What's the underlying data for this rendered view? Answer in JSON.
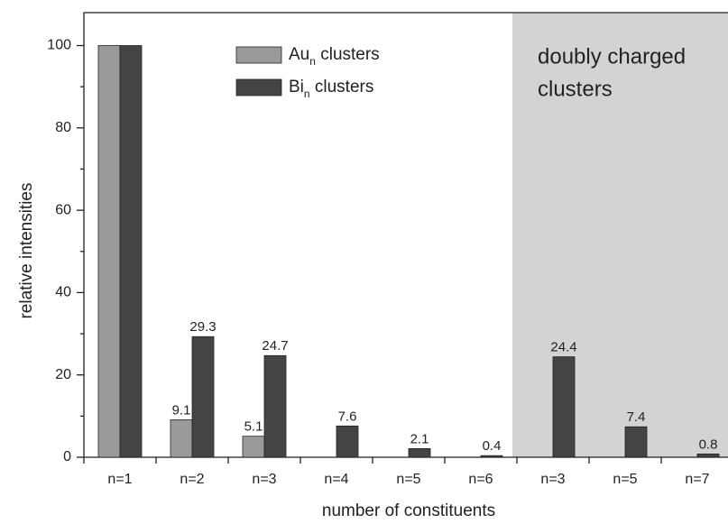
{
  "chart_data": {
    "type": "bar",
    "xlabel": "number of constituents",
    "ylabel": "relative intensities",
    "categories": [
      "n=1",
      "n=2",
      "n=3",
      "n=4",
      "n=5",
      "n=6",
      "n=3",
      "n=5",
      "n=7"
    ],
    "series": [
      {
        "name": "Au_n clusters",
        "color": "#9a9a9a",
        "values": [
          100,
          9.1,
          5.1,
          null,
          null,
          null,
          null,
          null,
          null
        ],
        "value_labels": [
          null,
          "9.1",
          "5.1",
          null,
          null,
          null,
          null,
          null,
          null
        ]
      },
      {
        "name": "Bi_n clusters",
        "color": "#444444",
        "values": [
          100,
          29.3,
          24.7,
          7.6,
          2.1,
          0.4,
          24.4,
          7.4,
          0.8
        ],
        "value_labels": [
          null,
          "29.3",
          "24.7",
          "7.6",
          "2.1",
          "0.4",
          "24.4",
          "7.4",
          "0.8"
        ]
      }
    ],
    "highlight": {
      "from_index": 6,
      "color": "#d3d3d3",
      "label": [
        "doubly charged",
        "clusters"
      ]
    },
    "ylim": [
      0,
      108
    ],
    "yticks": [
      0,
      20,
      40,
      60,
      80,
      100
    ],
    "grid": false
  }
}
